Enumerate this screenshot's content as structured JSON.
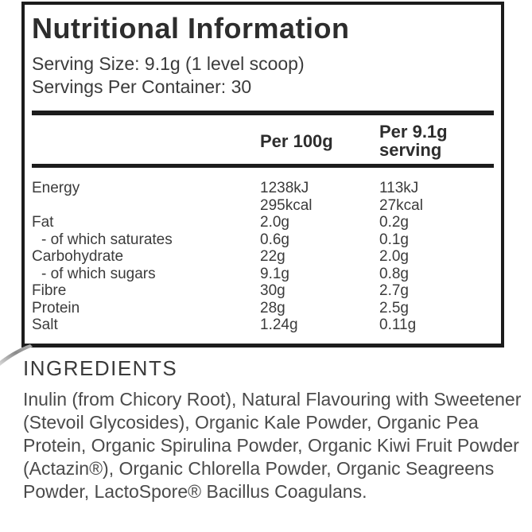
{
  "colors": {
    "border": "#1c1c1c",
    "title_text": "#2d2d2d",
    "body_text": "#3b3b3b",
    "ingredients_text": "#4a4a4a",
    "swoosh_dark": "#8a8a8a",
    "swoosh_light": "#d9d9d9"
  },
  "panel": {
    "title": "Nutritional Information",
    "serving_size": "Serving Size: 9.1g (1 level scoop)",
    "servings_per_container": "Servings Per Container: 30",
    "columns": {
      "per_100g": "Per 100g",
      "per_serving": "Per 9.1g serving"
    },
    "rows": [
      {
        "label": "Energy",
        "indent": false,
        "per_100g": [
          "1238kJ",
          "295kcal"
        ],
        "per_serving": [
          "113kJ",
          "27kcal"
        ]
      },
      {
        "label": "Fat",
        "indent": false,
        "per_100g": "2.0g",
        "per_serving": "0.2g"
      },
      {
        "label": "- of which saturates",
        "indent": true,
        "per_100g": "0.6g",
        "per_serving": "0.1g"
      },
      {
        "label": "Carbohydrate",
        "indent": false,
        "per_100g": "22g",
        "per_serving": "2.0g"
      },
      {
        "label": "- of which sugars",
        "indent": true,
        "per_100g": "9.1g",
        "per_serving": "0.8g"
      },
      {
        "label": "Fibre",
        "indent": false,
        "per_100g": "30g",
        "per_serving": "2.7g"
      },
      {
        "label": "Protein",
        "indent": false,
        "per_100g": "28g",
        "per_serving": "2.5g"
      },
      {
        "label": "Salt",
        "indent": false,
        "per_100g": "1.24g",
        "per_serving": "0.11g"
      }
    ]
  },
  "ingredients": {
    "heading": "INGREDIENTS",
    "text": "Inulin (from Chicory Root), Natural Flavouring with Sweetener (Stevoil Glycosides), Organic Kale Powder, Organic Pea Protein, Organic Spirulina Powder, Organic Kiwi Fruit Powder (Actazin®), Organic Chlorella Powder, Organic Seagreens Powder, LactoSpore® Bacillus Coagulans."
  }
}
